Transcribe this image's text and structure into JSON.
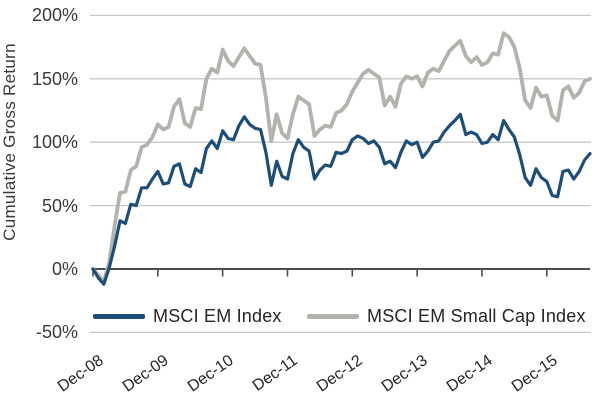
{
  "chart_data": {
    "type": "line",
    "title": "",
    "xlabel": "",
    "ylabel": "Cumulative Gross Return",
    "ylim": [
      -50,
      200
    ],
    "grid": true,
    "legend_position": "bottom",
    "frequency": "monthly",
    "start_month": "Dec-08",
    "end_month": "Aug-16",
    "y_ticks": [
      {
        "label": "200%",
        "value": 200
      },
      {
        "label": "150%",
        "value": 150
      },
      {
        "label": "100%",
        "value": 100
      },
      {
        "label": "50%",
        "value": 50
      },
      {
        "label": "0%",
        "value": 0
      },
      {
        "label": "-50%",
        "value": -50
      }
    ],
    "x_ticks": [
      {
        "label": "Dec-08",
        "month_index": 0
      },
      {
        "label": "Dec-09",
        "month_index": 12
      },
      {
        "label": "Dec-10",
        "month_index": 24
      },
      {
        "label": "Dec-11",
        "month_index": 36
      },
      {
        "label": "Dec-12",
        "month_index": 48
      },
      {
        "label": "Dec-13",
        "month_index": 60
      },
      {
        "label": "Dec-14",
        "month_index": 72
      },
      {
        "label": "Dec-15",
        "month_index": 84
      }
    ],
    "colors": {
      "gridline": "#c9c9c9",
      "zero_axis": "#4d4d4d",
      "tick": "#4d4d4d",
      "label_text": "#3a3a3a"
    },
    "series": [
      {
        "name": "MSCI EM Index",
        "color": "#1d4e79",
        "stroke_width": 3.2,
        "values": [
          0,
          -7,
          -12,
          1,
          18,
          38,
          36,
          51,
          50,
          64,
          64,
          71,
          77,
          67,
          68,
          81,
          83,
          67,
          65,
          79,
          76,
          95,
          101,
          95,
          109,
          103,
          102,
          113,
          120,
          114,
          111,
          110,
          92,
          66,
          85,
          73,
          71,
          91,
          102,
          96,
          93,
          71,
          78,
          82,
          81,
          92,
          91,
          93,
          102,
          105,
          103,
          99,
          101,
          96,
          83,
          85,
          80,
          92,
          101,
          98,
          100,
          88,
          93,
          100,
          101,
          108,
          113,
          117,
          122,
          106,
          108,
          106,
          99,
          100,
          106,
          102,
          117,
          110,
          104,
          90,
          72,
          66,
          79,
          72,
          69,
          58,
          57,
          77,
          78,
          71,
          77,
          86,
          91
        ]
      },
      {
        "name": "MSCI EM Small Cap Index",
        "color": "#b1b3ac",
        "stroke_width": 3.8,
        "values": [
          0,
          -5,
          -10,
          5,
          34,
          60,
          61,
          78,
          81,
          96,
          98,
          104,
          114,
          110,
          112,
          128,
          134,
          115,
          112,
          127,
          126,
          150,
          158,
          155,
          173,
          164,
          160,
          167,
          174,
          168,
          162,
          161,
          135,
          101,
          122,
          107,
          103,
          122,
          136,
          133,
          130,
          105,
          110,
          113,
          112,
          123,
          125,
          130,
          140,
          147,
          154,
          157,
          154,
          151,
          129,
          136,
          128,
          146,
          152,
          150,
          152,
          144,
          155,
          158,
          156,
          164,
          172,
          176,
          180,
          168,
          163,
          167,
          161,
          163,
          170,
          169,
          186,
          183,
          175,
          158,
          133,
          127,
          143,
          136,
          137,
          121,
          117,
          141,
          144,
          135,
          139,
          148,
          150
        ]
      }
    ]
  }
}
